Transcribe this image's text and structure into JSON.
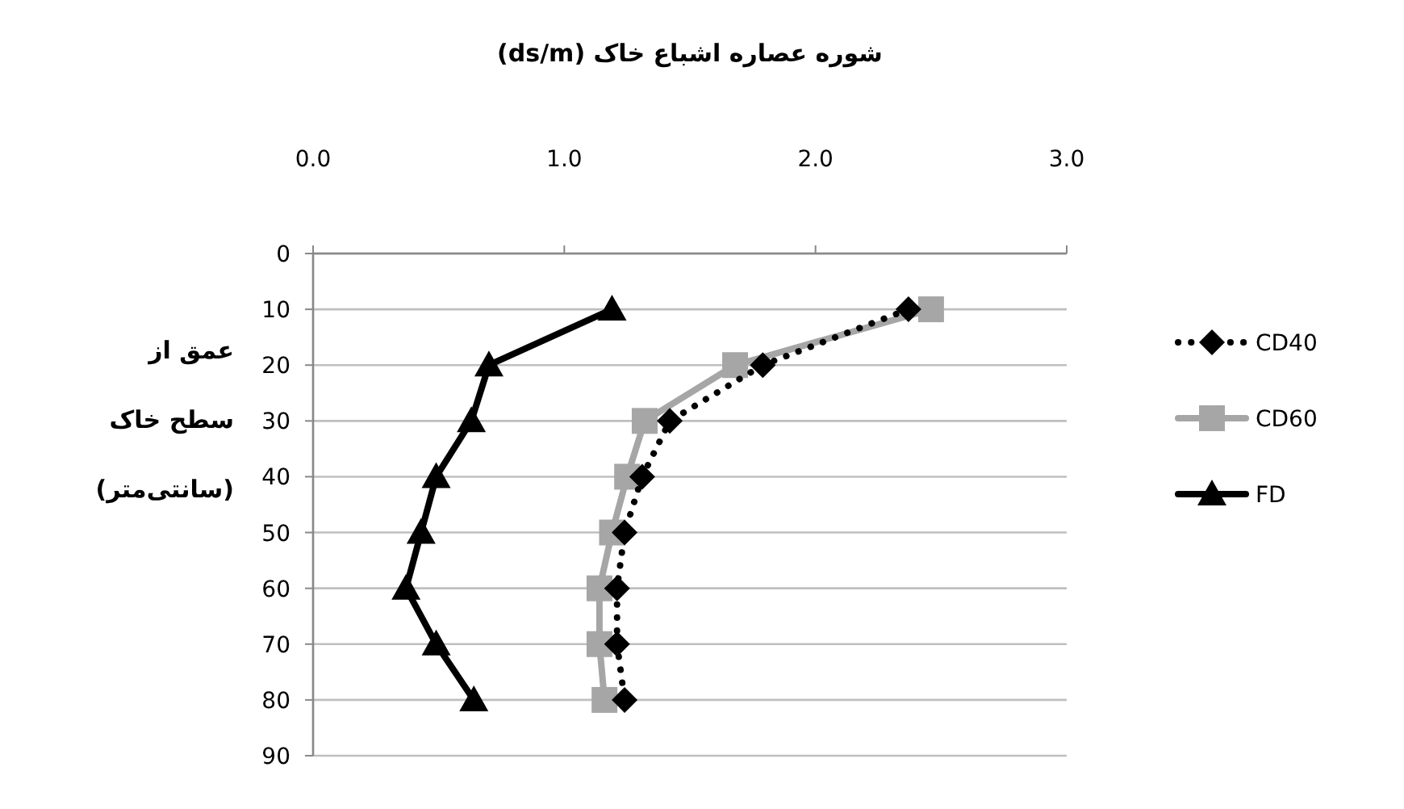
{
  "chart_data": {
    "type": "line",
    "xlabel": "شوره عصاره اشباع خاک (ds/m)",
    "ylabel": "عمق از\nسطح خاک\n(سانتی‌متر)",
    "xlim": [
      0,
      3
    ],
    "xticks": [
      {
        "value": 0,
        "label": "0.0"
      },
      {
        "value": 1,
        "label": "1.0"
      },
      {
        "value": 2,
        "label": "2.0"
      },
      {
        "value": 3,
        "label": "3.0"
      }
    ],
    "ylim": [
      90,
      0
    ],
    "yticks": [
      0,
      10,
      20,
      30,
      40,
      50,
      60,
      70,
      80,
      90
    ],
    "grid": "y",
    "legend": "right",
    "series": [
      {
        "name": "CD40",
        "color": "#000000",
        "marker": "diamond",
        "line_style": "dotted",
        "x": [
          2.37,
          1.79,
          1.42,
          1.31,
          1.24,
          1.21,
          1.21,
          1.24
        ],
        "values": [
          10,
          20,
          30,
          40,
          50,
          60,
          70,
          80
        ]
      },
      {
        "name": "CD60",
        "color": "#a6a6a6",
        "marker": "square",
        "line_style": "solid",
        "x": [
          2.46,
          1.68,
          1.32,
          1.25,
          1.19,
          1.14,
          1.14,
          1.16
        ],
        "values": [
          10,
          20,
          30,
          40,
          50,
          60,
          70,
          80
        ]
      },
      {
        "name": "FD",
        "color": "#000000",
        "marker": "triangle",
        "line_style": "solid",
        "x": [
          1.19,
          0.7,
          0.63,
          0.49,
          0.43,
          0.37,
          0.49,
          0.64
        ],
        "values": [
          10,
          20,
          30,
          40,
          50,
          60,
          70,
          80
        ]
      }
    ]
  }
}
